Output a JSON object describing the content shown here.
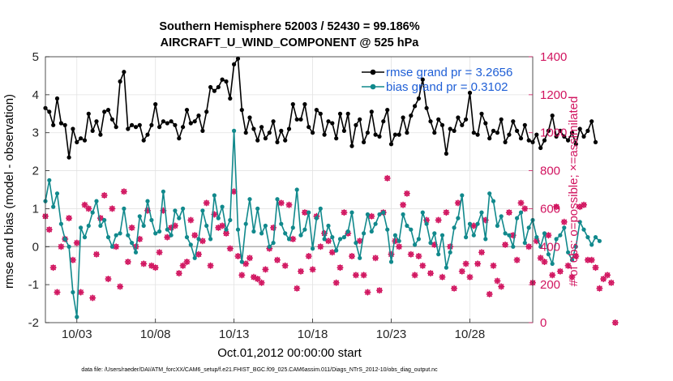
{
  "chart_data": {
    "type": "line",
    "title_line1": "Southern Hemisphere 52003 / 52430 = 99.186%",
    "title_line2": "AIRCRAFT_U_WIND_COMPONENT @ 525 hPa",
    "xlabel": "Oct.01,2012 00:00:00 start",
    "ylabel_left": "rmse and bias (model - observation)",
    "ylabel_right": "# of obs: o=possible; ×=assimilated",
    "footnote": "data file: /Users/raeder/DAI/ATM_forcXX/CAM6_setup/f.e21.FHIST_BGC.f09_025.CAM6assim.011/Diags_NTrS_2012-10/obs_diag_output.nc",
    "x_ticks": [
      {
        "label": "10/03",
        "value": 3
      },
      {
        "label": "10/08",
        "value": 8
      },
      {
        "label": "10/13",
        "value": 13
      },
      {
        "label": "10/18",
        "value": 18
      },
      {
        "label": "10/23",
        "value": 23
      },
      {
        "label": "10/28",
        "value": 28
      }
    ],
    "xlim": [
      1.0,
      32.0
    ],
    "ylim_left": [
      -2,
      5
    ],
    "left_ticks": [
      "-2",
      "-1",
      "0",
      "1",
      "2",
      "3",
      "4",
      "5"
    ],
    "ylim_right": [
      0,
      1400
    ],
    "right_ticks": [
      "0",
      "200",
      "400",
      "600",
      "800",
      "1000",
      "1200",
      "1400"
    ],
    "colors": {
      "rmse": "#000000",
      "bias": "#11898c",
      "obs": "#d1145f",
      "legend_text": "#1f5fd6",
      "zero_line": "#b0b0b0",
      "grid": "#e2e2e2"
    },
    "series": [
      {
        "name": "rmse grand pr = 3.2656",
        "axis": "left",
        "x_start": 1.0,
        "x_step": 0.25,
        "values": [
          3.65,
          3.55,
          3.2,
          3.9,
          3.25,
          3.2,
          2.35,
          3.1,
          2.75,
          2.85,
          2.8,
          3.5,
          3.05,
          3.3,
          2.95,
          3.55,
          3.6,
          3.35,
          3.15,
          4.35,
          4.6,
          3.1,
          3.2,
          3.15,
          3.2,
          2.8,
          2.95,
          3.2,
          3.75,
          3.15,
          3.3,
          3.25,
          3.3,
          3.2,
          2.85,
          3.15,
          3.6,
          3.25,
          3.3,
          3.45,
          3.05,
          3.55,
          4.2,
          4.1,
          4.2,
          4.4,
          4.35,
          3.9,
          4.8,
          4.95,
          3.6,
          3.0,
          3.4,
          3.1,
          2.8,
          3.15,
          2.85,
          3.0,
          3.3,
          2.75,
          3.05,
          2.8,
          3.1,
          3.75,
          3.35,
          3.35,
          3.75,
          3.15,
          3.0,
          3.6,
          3.5,
          2.95,
          3.3,
          3.25,
          2.85,
          3.5,
          3.05,
          3.5,
          2.65,
          3.2,
          3.35,
          2.75,
          3.0,
          3.55,
          2.95,
          2.9,
          3.3,
          3.6,
          2.7,
          2.95,
          2.95,
          3.4,
          3.0,
          3.45,
          3.7,
          3.9,
          4.4,
          3.65,
          3.3,
          3.0,
          3.35,
          3.2,
          2.45,
          3.1,
          3.05,
          3.4,
          3.2,
          3.35,
          4.05,
          3.0,
          2.95,
          3.5,
          3.25,
          2.85,
          3.05,
          3.0,
          3.35,
          2.75,
          2.95,
          3.3,
          3.05,
          2.85,
          3.2,
          2.8,
          2.75,
          2.95,
          2.6,
          2.8,
          3.05,
          3.45,
          2.9,
          3.05,
          2.9,
          2.8,
          3.0,
          2.7,
          3.1,
          2.9,
          3.05,
          3.3,
          2.75
        ]
      },
      {
        "name": "bias grand pr = 0.3102",
        "axis": "left",
        "x_start": 1.0,
        "x_step": 0.25,
        "values": [
          1.2,
          1.75,
          1.05,
          1.4,
          0.6,
          0.2,
          0.0,
          -1.2,
          -1.85,
          0.5,
          0.25,
          0.55,
          0.9,
          1.2,
          0.55,
          0.7,
          0.25,
          0.0,
          0.3,
          0.35,
          1.0,
          0.3,
          0.1,
          -0.15,
          0.8,
          0.55,
          1.2,
          0.7,
          0.35,
          0.4,
          1.45,
          0.45,
          0.3,
          0.95,
          0.75,
          1.0,
          0.25,
          0.05,
          -0.3,
          0.2,
          0.95,
          0.55,
          0.2,
          1.35,
          0.75,
          1.05,
          0.45,
          0.7,
          3.05,
          0.45,
          -0.4,
          0.6,
          1.25,
          0.4,
          1.0,
          0.35,
          0.55,
          0.0,
          0.1,
          1.25,
          0.6,
          0.35,
          0.2,
          0.5,
          1.5,
          0.3,
          0.45,
          0.9,
          -0.05,
          0.75,
          1.0,
          0.2,
          0.55,
          0.25,
          -0.1,
          0.2,
          0.25,
          0.4,
          0.9,
          0.1,
          -0.3,
          0.35,
          0.85,
          0.4,
          0.6,
          0.85,
          0.9,
          0.45,
          -0.4,
          0.3,
          0.15,
          0.85,
          0.55,
          0.45,
          0.05,
          0.2,
          0.9,
          0.6,
          0.1,
          0.35,
          -0.2,
          0.3,
          -0.55,
          -0.15,
          0.5,
          0.75,
          1.35,
          0.25,
          0.6,
          0.3,
          0.6,
          0.9,
          0.2,
          1.4,
          1.2,
          0.55,
          0.8,
          0.35,
          0.3,
          0.0,
          0.75,
          0.9,
          0.1,
          0.5,
          0.7,
          0.25,
          0.0,
          0.35,
          -0.2,
          -0.45,
          0.2,
          0.3,
          0.5,
          -0.15,
          -0.35,
          0.0,
          0.65,
          0.45,
          0.25,
          0.05,
          0.25,
          0.15
        ]
      },
      {
        "name": "obs",
        "axis": "right",
        "x_start": 1.0,
        "x_step": 0.25,
        "values": [
          560,
          490,
          290,
          160,
          400,
          440,
          550,
          330,
          420,
          160,
          620,
          600,
          130,
          360,
          550,
          670,
          230,
          600,
          400,
          190,
          690,
          320,
          500,
          400,
          440,
          310,
          590,
          300,
          290,
          370,
          590,
          450,
          500,
          510,
          260,
          300,
          320,
          540,
          460,
          360,
          430,
          630,
          300,
          570,
          500,
          510,
          470,
          390,
          690,
          350,
          250,
          310,
          340,
          240,
          230,
          210,
          280,
          390,
          500,
          330,
          630,
          300,
          620,
          440,
          180,
          270,
          580,
          350,
          280,
          560,
          400,
          470,
          430,
          370,
          210,
          290,
          580,
          470,
          350,
          250,
          430,
          250,
          160,
          560,
          340,
          170,
          580,
          760,
          360,
          430,
          400,
          620,
          680,
          360,
          250,
          350,
          300,
          540,
          260,
          410,
          540,
          240,
          580,
          400,
          180,
          630,
          270,
          310,
          240,
          510,
          310,
          370,
          540,
          150,
          300,
          220,
          190,
          410,
          580,
          460,
          330,
          630,
          600,
          400,
          210,
          430,
          340,
          320,
          460,
          250,
          610,
          270,
          530,
          300,
          240,
          350,
          610,
          620,
          330,
          330,
          290,
          180,
          230,
          250,
          210,
          0
        ]
      }
    ]
  }
}
